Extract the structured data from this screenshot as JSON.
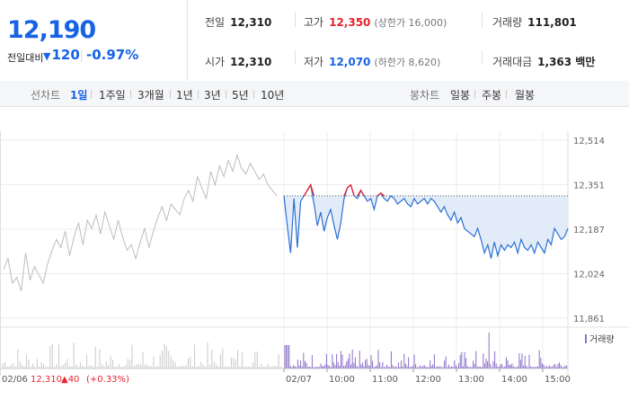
{
  "quote": {
    "price": "12,190",
    "change_label": "전일대비",
    "change_direction": "down",
    "change_abs": "120",
    "change_pct": "-0.97%",
    "stats": [
      {
        "label": "전일",
        "value": "12,310"
      },
      {
        "label": "고가",
        "value": "12,350",
        "sub": "(상한가 16,000)"
      },
      {
        "label": "거래량",
        "value": "111,801"
      },
      {
        "label": "시가",
        "value": "12,310"
      },
      {
        "label": "저가",
        "value": "12,070",
        "sub": "(하한가 8,620)"
      },
      {
        "label": "거래대금",
        "value": "1,363 백만"
      }
    ]
  },
  "toolbar": {
    "line_caption": "선차트",
    "line_periods": [
      "1일",
      "1주일",
      "3개월",
      "1년",
      "3년",
      "5년",
      "10년"
    ],
    "line_active": "1일",
    "candle_caption": "봉차트",
    "candle_periods": [
      "일봉",
      "주봉",
      "월봉"
    ]
  },
  "chart_data": {
    "type": "line",
    "ylim": [
      11861,
      12514
    ],
    "y_ticks": [
      "12,514",
      "12,351",
      "12,187",
      "12,024",
      "11,861"
    ],
    "x_ticks": [
      "02/07",
      "10:00",
      "11:00",
      "12:00",
      "13:00",
      "14:00",
      "15:00"
    ],
    "reference_price": 12310,
    "volume_legend": "거래량",
    "prev_day_summary": {
      "date": "02/06",
      "close": "12,310",
      "change": "▲40",
      "change_pct": "(+0.33%)"
    },
    "series": [
      {
        "role": "previous-day",
        "color": "#bdbdbd",
        "values": [
          12040,
          12080,
          11990,
          12010,
          11960,
          12100,
          12000,
          12050,
          12020,
          11990,
          12060,
          12110,
          12150,
          12120,
          12180,
          12090,
          12160,
          12210,
          12130,
          12220,
          12190,
          12240,
          12170,
          12250,
          12200,
          12150,
          12220,
          12160,
          12110,
          12130,
          12080,
          12140,
          12190,
          12120,
          12180,
          12230,
          12270,
          12220,
          12280,
          12260,
          12240,
          12300,
          12330,
          12290,
          12380,
          12340,
          12300,
          12400,
          12350,
          12420,
          12380,
          12440,
          12400,
          12460,
          12410,
          12390,
          12430,
          12400,
          12370,
          12390,
          12350,
          12330,
          12310
        ]
      },
      {
        "role": "today",
        "color": "#2b6fd6",
        "values": [
          12310,
          12200,
          12100,
          12300,
          12120,
          12290,
          12310,
          12330,
          12350,
          12280,
          12200,
          12250,
          12180,
          12230,
          12260,
          12200,
          12150,
          12210,
          12300,
          12340,
          12350,
          12310,
          12300,
          12330,
          12310,
          12290,
          12300,
          12260,
          12310,
          12320,
          12300,
          12290,
          12310,
          12300,
          12280,
          12290,
          12300,
          12280,
          12270,
          12300,
          12280,
          12290,
          12300,
          12280,
          12300,
          12290,
          12270,
          12250,
          12270,
          12240,
          12220,
          12250,
          12210,
          12230,
          12190,
          12180,
          12170,
          12160,
          12190,
          12150,
          12100,
          12130,
          12080,
          12140,
          12090,
          12130,
          12110,
          12130,
          12120,
          12140,
          12100,
          12150,
          12120,
          12110,
          12130,
          12100,
          12140,
          12120,
          12100,
          12150,
          12130,
          12190,
          12170,
          12150,
          12160,
          12190
        ]
      }
    ]
  }
}
